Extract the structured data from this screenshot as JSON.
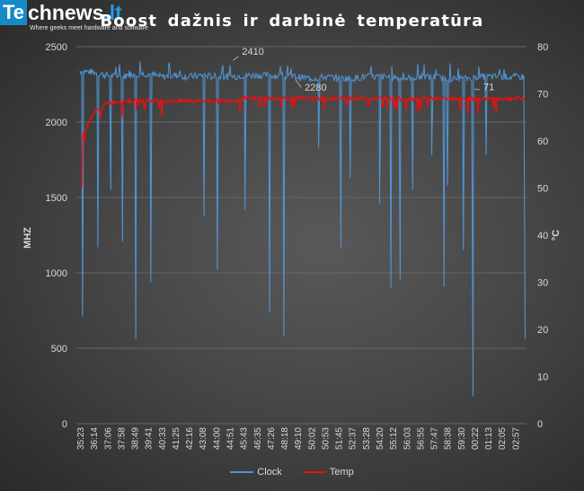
{
  "logo": {
    "mark": "Te",
    "word": "chnews",
    "tld": ".lt",
    "tagline": "Where geeks meet hardware and software"
  },
  "colors": {
    "clock": "#4f93d0",
    "temp": "#e81010",
    "grid": "#666666",
    "text": "#d9d9d9"
  },
  "chart_data": {
    "type": "line",
    "title": "Boost dažnis ir darbinė temperatūra",
    "ylabel_left": "MHZ",
    "ylabel_right": "°C",
    "ylim_left": [
      0,
      2500
    ],
    "yticks_left": [
      0,
      500,
      1000,
      1500,
      2000,
      2500
    ],
    "ylim_right": [
      0,
      80
    ],
    "yticks_right": [
      0,
      10,
      20,
      30,
      40,
      50,
      60,
      70,
      80
    ],
    "grid": true,
    "legend_position": "bottom",
    "x_tick_labels": [
      "35:23",
      "36:14",
      "37:06",
      "37:58",
      "38:49",
      "39:41",
      "40:33",
      "41:25",
      "42:16",
      "43:08",
      "44:00",
      "44:51",
      "45:43",
      "46:35",
      "47:26",
      "48:18",
      "49:10",
      "50:02",
      "50:53",
      "51:45",
      "52:37",
      "53:28",
      "54:20",
      "55:12",
      "56:03",
      "56:55",
      "57:47",
      "58:38",
      "59:30",
      "00:22",
      "01:13",
      "02:05",
      "02:57"
    ],
    "series": [
      {
        "name": "Clock",
        "axis": "left",
        "baseline": 2310,
        "values_at_ticks": [
          2340,
          2330,
          2310,
          2300,
          2320,
          2320,
          2300,
          2310,
          2300,
          2310,
          2300,
          2300,
          2310,
          2310,
          2310,
          2300,
          2300,
          2290,
          2300,
          2290,
          2290,
          2300,
          2300,
          2300,
          2290,
          2300,
          2300,
          2290,
          2280,
          2300,
          2300,
          2300,
          2300
        ],
        "dips": [
          {
            "time": "35:33",
            "value": 710
          },
          {
            "time": "36:31",
            "value": 1170
          },
          {
            "time": "37:20",
            "value": 1550
          },
          {
            "time": "38:05",
            "value": 1210
          },
          {
            "time": "38:55",
            "value": 560
          },
          {
            "time": "39:52",
            "value": 940
          },
          {
            "time": "43:15",
            "value": 1380
          },
          {
            "time": "44:05",
            "value": 1020
          },
          {
            "time": "45:50",
            "value": 1420
          },
          {
            "time": "47:24",
            "value": 740
          },
          {
            "time": "48:18",
            "value": 580
          },
          {
            "time": "50:30",
            "value": 1830
          },
          {
            "time": "51:55",
            "value": 1170
          },
          {
            "time": "52:30",
            "value": 1630
          },
          {
            "time": "54:22",
            "value": 1460
          },
          {
            "time": "55:05",
            "value": 900
          },
          {
            "time": "55:40",
            "value": 950
          },
          {
            "time": "56:28",
            "value": 1550
          },
          {
            "time": "57:40",
            "value": 1780
          },
          {
            "time": "58:27",
            "value": 910
          },
          {
            "time": "58:40",
            "value": 1580
          },
          {
            "time": "59:40",
            "value": 1150
          },
          {
            "time": "00:17",
            "value": 180
          },
          {
            "time": "01:07",
            "value": 1780
          },
          {
            "time": "03:35",
            "value": 560
          }
        ],
        "annotations": [
          {
            "label": "2410",
            "time": "45:05",
            "value": 2410
          },
          {
            "label": "2280",
            "time": "49:03",
            "value": 2280
          }
        ]
      },
      {
        "name": "Temp",
        "axis": "right",
        "start_value": 50,
        "values_at_ticks": [
          60,
          66,
          68,
          68.5,
          68.5,
          68.5,
          68.5,
          68.5,
          68.5,
          68.5,
          68.5,
          68.5,
          69,
          69,
          69,
          69,
          69,
          69,
          69,
          69,
          69,
          69,
          69,
          69,
          69,
          69,
          69,
          69,
          69,
          69,
          69,
          69,
          69
        ],
        "annotations": [
          {
            "label": "71",
            "time": "00:22",
            "value": 71
          }
        ]
      }
    ]
  }
}
